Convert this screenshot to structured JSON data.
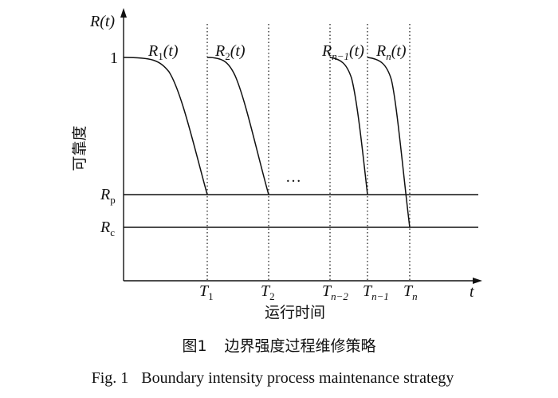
{
  "axes": {
    "y_label": "R(t)",
    "y_title": "可靠度",
    "x_label": "t",
    "x_title": "运行时间",
    "level_one": "1",
    "rp": {
      "base": "R",
      "sub": "p"
    },
    "rc": {
      "base": "R",
      "sub": "c"
    }
  },
  "curves": [
    {
      "base": "R",
      "sub": "1",
      "arg": "(t)"
    },
    {
      "base": "R",
      "sub": "2",
      "arg": "(t)"
    },
    {
      "base": "R",
      "sub": "n−1",
      "arg": "(t)"
    },
    {
      "base": "R",
      "sub": "n",
      "arg": "(t)"
    }
  ],
  "times": [
    {
      "base": "T",
      "sub": "1"
    },
    {
      "base": "T",
      "sub": "2"
    },
    {
      "base": "T",
      "sub": "n−2"
    },
    {
      "base": "T",
      "sub": "n−1"
    },
    {
      "base": "T",
      "sub": "n"
    }
  ],
  "ellipsis": "…",
  "caption": {
    "cn": {
      "fig": "图1",
      "text": "边界强度过程维修策略"
    },
    "en": {
      "fig": "Fig. 1",
      "text": "Boundary intensity process maintenance strategy"
    }
  }
}
